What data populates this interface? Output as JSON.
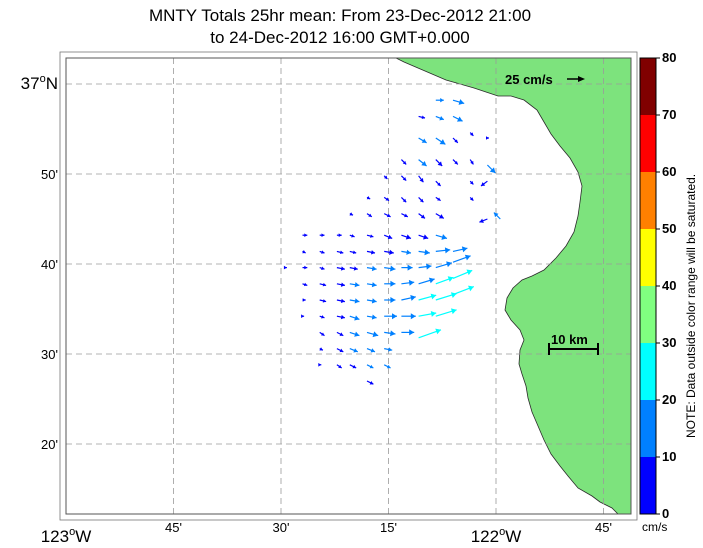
{
  "title_line1": "MNTY Totals 25hr mean: From 23-Dec-2012 21:00",
  "title_line2": "to 24-Dec-2012 16:00 GMT+0.000",
  "latitude_labels": [
    {
      "lat": 37.0,
      "text": "37",
      "sup": "o",
      "suffix": "N"
    },
    {
      "lat": 36.8333,
      "text": "50'"
    },
    {
      "lat": 36.6667,
      "text": "40'"
    },
    {
      "lat": 36.5,
      "text": "30'"
    },
    {
      "lat": 36.3333,
      "text": "20'"
    }
  ],
  "longitude_labels": [
    {
      "lon": -123.0,
      "text": "123",
      "sup": "o",
      "suffix": "W"
    },
    {
      "lon": -122.75,
      "text": "45'"
    },
    {
      "lon": -122.5,
      "text": "30'"
    },
    {
      "lon": -122.25,
      "text": "15'"
    },
    {
      "lon": -122.0,
      "text": "122",
      "sup": "o",
      "suffix": "W"
    },
    {
      "lon": -121.75,
      "text": "45'"
    }
  ],
  "reference_vector_label": "25 cm/s",
  "scale_bar_label": "10 km",
  "colorbar": {
    "ticks": [
      "0",
      "10",
      "20",
      "30",
      "40",
      "50",
      "60",
      "70",
      "80"
    ],
    "colors": [
      "#0000ff",
      "#0080ff",
      "#00ffff",
      "#80ff80",
      "#ffff00",
      "#ff8000",
      "#ff0000",
      "#800000"
    ],
    "unit": "cm/s",
    "note": "NOTE: Data outside color range will be saturated."
  },
  "land_color": "#7de37d",
  "vectors_note_units": "cm/s",
  "map_data": {
    "type": "current-vector-map",
    "lon_range": [
      -123.0,
      -121.7
    ],
    "lat_range": [
      36.22,
      37.05
    ],
    "vectors": [
      {
        "lon": -122.14,
        "lat": 36.97,
        "u": 5,
        "v": 0,
        "c": "#0080ff"
      },
      {
        "lon": -122.1,
        "lat": 36.97,
        "u": 7,
        "v": -2,
        "c": "#0080ff"
      },
      {
        "lon": -122.18,
        "lat": 36.94,
        "u": 4,
        "v": -1,
        "c": "#0000ff"
      },
      {
        "lon": -122.14,
        "lat": 36.94,
        "u": 5,
        "v": -2,
        "c": "#0080ff"
      },
      {
        "lon": -122.1,
        "lat": 36.94,
        "u": 6,
        "v": -3,
        "c": "#0080ff"
      },
      {
        "lon": -122.18,
        "lat": 36.9,
        "u": 5,
        "v": -3,
        "c": "#0080ff"
      },
      {
        "lon": -122.14,
        "lat": 36.9,
        "u": 6,
        "v": -4,
        "c": "#0080ff"
      },
      {
        "lon": -122.1,
        "lat": 36.9,
        "u": 3,
        "v": -3,
        "c": "#0000ff"
      },
      {
        "lon": -122.06,
        "lat": 36.91,
        "u": 2,
        "v": -2,
        "c": "#0000ff"
      },
      {
        "lon": -122.02,
        "lat": 36.9,
        "u": 1,
        "v": 0,
        "c": "#0000ff"
      },
      {
        "lon": -122.22,
        "lat": 36.86,
        "u": 3,
        "v": -3,
        "c": "#0000ff"
      },
      {
        "lon": -122.18,
        "lat": 36.86,
        "u": 5,
        "v": -4,
        "c": "#0080ff"
      },
      {
        "lon": -122.14,
        "lat": 36.86,
        "u": 4,
        "v": -4,
        "c": "#0000ff"
      },
      {
        "lon": -122.1,
        "lat": 36.86,
        "u": 3,
        "v": -3,
        "c": "#0000ff"
      },
      {
        "lon": -122.06,
        "lat": 36.86,
        "u": 2,
        "v": -3,
        "c": "#0000ff"
      },
      {
        "lon": -122.02,
        "lat": 36.85,
        "u": 5,
        "v": -5,
        "c": "#0080ff"
      },
      {
        "lon": -122.26,
        "lat": 36.83,
        "u": 2,
        "v": -2,
        "c": "#0000ff"
      },
      {
        "lon": -122.22,
        "lat": 36.83,
        "u": 3,
        "v": -3,
        "c": "#0000ff"
      },
      {
        "lon": -122.18,
        "lat": 36.83,
        "u": 3,
        "v": -4,
        "c": "#0000ff"
      },
      {
        "lon": -122.14,
        "lat": 36.82,
        "u": 3,
        "v": -3,
        "c": "#0000ff"
      },
      {
        "lon": -122.06,
        "lat": 36.82,
        "u": 2,
        "v": -2,
        "c": "#0000ff"
      },
      {
        "lon": -122.02,
        "lat": 36.82,
        "u": -4,
        "v": -3,
        "c": "#0000ff"
      },
      {
        "lon": -122.3,
        "lat": 36.79,
        "u": 2,
        "v": -1,
        "c": "#0000ff"
      },
      {
        "lon": -122.26,
        "lat": 36.79,
        "u": 3,
        "v": -2,
        "c": "#0000ff"
      },
      {
        "lon": -122.22,
        "lat": 36.79,
        "u": 3,
        "v": -3,
        "c": "#0000ff"
      },
      {
        "lon": -122.18,
        "lat": 36.79,
        "u": 3,
        "v": -3,
        "c": "#0000ff"
      },
      {
        "lon": -122.14,
        "lat": 36.79,
        "u": 3,
        "v": -2,
        "c": "#0000ff"
      },
      {
        "lon": -122.06,
        "lat": 36.79,
        "u": 2,
        "v": -2,
        "c": "#0000ff"
      },
      {
        "lon": -122.34,
        "lat": 36.76,
        "u": 2,
        "v": -1,
        "c": "#0000ff"
      },
      {
        "lon": -122.3,
        "lat": 36.76,
        "u": 3,
        "v": -2,
        "c": "#0000ff"
      },
      {
        "lon": -122.26,
        "lat": 36.76,
        "u": 4,
        "v": -2,
        "c": "#0000ff"
      },
      {
        "lon": -122.22,
        "lat": 36.76,
        "u": 4,
        "v": -2,
        "c": "#0000ff"
      },
      {
        "lon": -122.18,
        "lat": 36.76,
        "u": 4,
        "v": -3,
        "c": "#0000ff"
      },
      {
        "lon": -122.14,
        "lat": 36.76,
        "u": 5,
        "v": -3,
        "c": "#0000ff"
      },
      {
        "lon": -122.02,
        "lat": 36.75,
        "u": -5,
        "v": -2,
        "c": "#0000ff"
      },
      {
        "lon": -121.99,
        "lat": 36.75,
        "u": -4,
        "v": 4,
        "c": "#0080ff"
      },
      {
        "lon": -122.45,
        "lat": 36.72,
        "u": 3,
        "v": 0,
        "c": "#0000ff"
      },
      {
        "lon": -122.41,
        "lat": 36.72,
        "u": 3,
        "v": 0,
        "c": "#0000ff"
      },
      {
        "lon": -122.37,
        "lat": 36.72,
        "u": 3,
        "v": 0,
        "c": "#0000ff"
      },
      {
        "lon": -122.34,
        "lat": 36.72,
        "u": 3,
        "v": -1,
        "c": "#0000ff"
      },
      {
        "lon": -122.3,
        "lat": 36.72,
        "u": 4,
        "v": -1,
        "c": "#0000ff"
      },
      {
        "lon": -122.26,
        "lat": 36.72,
        "u": 5,
        "v": -2,
        "c": "#0000ff"
      },
      {
        "lon": -122.22,
        "lat": 36.72,
        "u": 6,
        "v": -2,
        "c": "#0000ff"
      },
      {
        "lon": -122.18,
        "lat": 36.72,
        "u": 6,
        "v": -2,
        "c": "#0000ff"
      },
      {
        "lon": -122.14,
        "lat": 36.72,
        "u": 7,
        "v": -2,
        "c": "#0080ff"
      },
      {
        "lon": -122.45,
        "lat": 36.69,
        "u": 2,
        "v": -1,
        "c": "#0000ff"
      },
      {
        "lon": -122.41,
        "lat": 36.69,
        "u": 3,
        "v": -1,
        "c": "#0000ff"
      },
      {
        "lon": -122.37,
        "lat": 36.69,
        "u": 4,
        "v": -1,
        "c": "#0000ff"
      },
      {
        "lon": -122.34,
        "lat": 36.69,
        "u": 4,
        "v": -1,
        "c": "#0000ff"
      },
      {
        "lon": -122.3,
        "lat": 36.69,
        "u": 5,
        "v": -1,
        "c": "#0000ff"
      },
      {
        "lon": -122.26,
        "lat": 36.69,
        "u": 6,
        "v": -1,
        "c": "#0000ff"
      },
      {
        "lon": -122.22,
        "lat": 36.69,
        "u": 6,
        "v": -1,
        "c": "#0080ff"
      },
      {
        "lon": -122.18,
        "lat": 36.69,
        "u": 7,
        "v": -1,
        "c": "#0080ff"
      },
      {
        "lon": -122.14,
        "lat": 36.69,
        "u": 9,
        "v": 1,
        "c": "#0080ff"
      },
      {
        "lon": -122.1,
        "lat": 36.69,
        "u": 9,
        "v": 2,
        "c": "#0080ff"
      },
      {
        "lon": -122.49,
        "lat": 36.66,
        "u": 1,
        "v": 0,
        "c": "#0000ff"
      },
      {
        "lon": -122.45,
        "lat": 36.66,
        "u": 3,
        "v": 0,
        "c": "#0000ff"
      },
      {
        "lon": -122.41,
        "lat": 36.66,
        "u": 3,
        "v": -1,
        "c": "#0000ff"
      },
      {
        "lon": -122.37,
        "lat": 36.66,
        "u": 5,
        "v": -1,
        "c": "#0000ff"
      },
      {
        "lon": -122.34,
        "lat": 36.66,
        "u": 5,
        "v": -1,
        "c": "#0000ff"
      },
      {
        "lon": -122.3,
        "lat": 36.66,
        "u": 6,
        "v": -1,
        "c": "#0080ff"
      },
      {
        "lon": -122.26,
        "lat": 36.66,
        "u": 7,
        "v": -1,
        "c": "#0080ff"
      },
      {
        "lon": -122.22,
        "lat": 36.66,
        "u": 7,
        "v": 0,
        "c": "#0080ff"
      },
      {
        "lon": -122.18,
        "lat": 36.66,
        "u": 8,
        "v": 1,
        "c": "#0080ff"
      },
      {
        "lon": -122.14,
        "lat": 36.66,
        "u": 10,
        "v": 3,
        "c": "#0080ff"
      },
      {
        "lon": -122.1,
        "lat": 36.67,
        "u": 11,
        "v": 4,
        "c": "#0080ff"
      },
      {
        "lon": -122.45,
        "lat": 36.63,
        "u": 3,
        "v": -1,
        "c": "#0000ff"
      },
      {
        "lon": -122.41,
        "lat": 36.63,
        "u": 4,
        "v": -1,
        "c": "#0000ff"
      },
      {
        "lon": -122.37,
        "lat": 36.63,
        "u": 5,
        "v": -1,
        "c": "#0000ff"
      },
      {
        "lon": -122.34,
        "lat": 36.63,
        "u": 6,
        "v": -1,
        "c": "#0080ff"
      },
      {
        "lon": -122.3,
        "lat": 36.63,
        "u": 6,
        "v": -1,
        "c": "#0080ff"
      },
      {
        "lon": -122.26,
        "lat": 36.63,
        "u": 7,
        "v": 0,
        "c": "#0080ff"
      },
      {
        "lon": -122.22,
        "lat": 36.63,
        "u": 8,
        "v": 1,
        "c": "#0080ff"
      },
      {
        "lon": -122.18,
        "lat": 36.63,
        "u": 10,
        "v": 3,
        "c": "#0080ff"
      },
      {
        "lon": -122.14,
        "lat": 36.63,
        "u": 11,
        "v": 4,
        "c": "#00ffff"
      },
      {
        "lon": -122.1,
        "lat": 36.64,
        "u": 12,
        "v": 5,
        "c": "#00ffff"
      },
      {
        "lon": -122.45,
        "lat": 36.6,
        "u": 2,
        "v": 0,
        "c": "#0000ff"
      },
      {
        "lon": -122.41,
        "lat": 36.6,
        "u": 4,
        "v": -1,
        "c": "#0000ff"
      },
      {
        "lon": -122.37,
        "lat": 36.6,
        "u": 5,
        "v": -1,
        "c": "#0000ff"
      },
      {
        "lon": -122.34,
        "lat": 36.6,
        "u": 6,
        "v": -1,
        "c": "#0080ff"
      },
      {
        "lon": -122.3,
        "lat": 36.6,
        "u": 6,
        "v": -1,
        "c": "#0080ff"
      },
      {
        "lon": -122.26,
        "lat": 36.6,
        "u": 7,
        "v": 0,
        "c": "#0080ff"
      },
      {
        "lon": -122.22,
        "lat": 36.6,
        "u": 9,
        "v": 2,
        "c": "#0080ff"
      },
      {
        "lon": -122.18,
        "lat": 36.6,
        "u": 11,
        "v": 3,
        "c": "#00ffff"
      },
      {
        "lon": -122.14,
        "lat": 36.6,
        "u": 13,
        "v": 4,
        "c": "#00ffff"
      },
      {
        "lon": -122.1,
        "lat": 36.61,
        "u": 13,
        "v": 5,
        "c": "#00ffff"
      },
      {
        "lon": -122.45,
        "lat": 36.57,
        "u": 1,
        "v": 0,
        "c": "#0000ff"
      },
      {
        "lon": -122.41,
        "lat": 36.57,
        "u": 3,
        "v": -1,
        "c": "#0000ff"
      },
      {
        "lon": -122.37,
        "lat": 36.57,
        "u": 5,
        "v": -1,
        "c": "#0000ff"
      },
      {
        "lon": -122.34,
        "lat": 36.57,
        "u": 6,
        "v": -2,
        "c": "#0080ff"
      },
      {
        "lon": -122.3,
        "lat": 36.57,
        "u": 6,
        "v": -1,
        "c": "#0080ff"
      },
      {
        "lon": -122.26,
        "lat": 36.57,
        "u": 8,
        "v": 0,
        "c": "#0080ff"
      },
      {
        "lon": -122.22,
        "lat": 36.57,
        "u": 9,
        "v": 0,
        "c": "#0080ff"
      },
      {
        "lon": -122.18,
        "lat": 36.57,
        "u": 11,
        "v": 2,
        "c": "#00ffff"
      },
      {
        "lon": -122.14,
        "lat": 36.57,
        "u": 13,
        "v": 4,
        "c": "#00ffff"
      },
      {
        "lon": -122.41,
        "lat": 36.54,
        "u": 3,
        "v": -2,
        "c": "#0000ff"
      },
      {
        "lon": -122.37,
        "lat": 36.54,
        "u": 4,
        "v": -2,
        "c": "#0000ff"
      },
      {
        "lon": -122.34,
        "lat": 36.54,
        "u": 6,
        "v": -2,
        "c": "#0080ff"
      },
      {
        "lon": -122.3,
        "lat": 36.54,
        "u": 7,
        "v": -2,
        "c": "#0080ff"
      },
      {
        "lon": -122.26,
        "lat": 36.54,
        "u": 7,
        "v": -1,
        "c": "#0080ff"
      },
      {
        "lon": -122.22,
        "lat": 36.54,
        "u": 8,
        "v": 0,
        "c": "#0080ff"
      },
      {
        "lon": -122.18,
        "lat": 36.53,
        "u": 14,
        "v": 5,
        "c": "#00ffff"
      },
      {
        "lon": -122.41,
        "lat": 36.51,
        "u": 2,
        "v": -1,
        "c": "#0000ff"
      },
      {
        "lon": -122.37,
        "lat": 36.51,
        "u": 4,
        "v": -2,
        "c": "#0000ff"
      },
      {
        "lon": -122.34,
        "lat": 36.51,
        "u": 5,
        "v": -2,
        "c": "#0080ff"
      },
      {
        "lon": -122.3,
        "lat": 36.51,
        "u": 5,
        "v": -2,
        "c": "#0080ff"
      },
      {
        "lon": -122.26,
        "lat": 36.51,
        "u": 5,
        "v": -1,
        "c": "#0080ff"
      },
      {
        "lon": -122.37,
        "lat": 36.48,
        "u": 3,
        "v": -2,
        "c": "#0000ff"
      },
      {
        "lon": -122.34,
        "lat": 36.48,
        "u": 4,
        "v": -2,
        "c": "#0000ff"
      },
      {
        "lon": -122.3,
        "lat": 36.48,
        "u": 4,
        "v": -2,
        "c": "#0080ff"
      },
      {
        "lon": -122.26,
        "lat": 36.48,
        "u": 4,
        "v": -2,
        "c": "#0080ff"
      },
      {
        "lon": -122.41,
        "lat": 36.48,
        "u": 1,
        "v": 0,
        "c": "#0000ff"
      },
      {
        "lon": -122.3,
        "lat": 36.45,
        "u": 4,
        "v": -2,
        "c": "#0000ff"
      }
    ]
  }
}
